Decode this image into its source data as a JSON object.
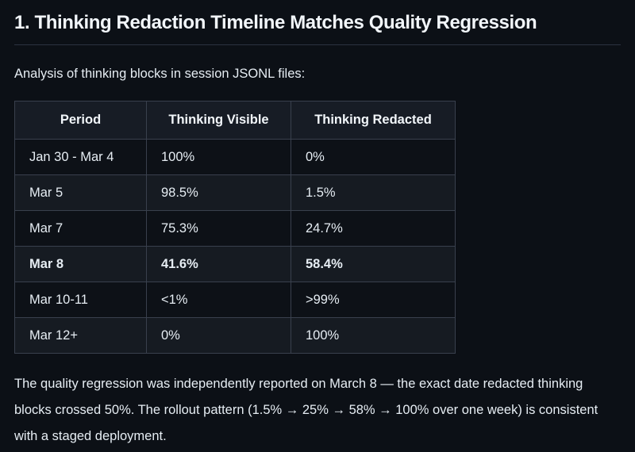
{
  "colors": {
    "page_background": "#0c1016",
    "row_dark": "#0d1117",
    "row_light": "#161b22",
    "header_background": "#171c25",
    "table_border": "#39404d",
    "body_text": "#e6edf3",
    "heading_text": "#f2f6fa"
  },
  "heading": {
    "text": "1. Thinking Redaction Timeline Matches Quality Regression"
  },
  "intro": {
    "text": "Analysis of thinking blocks in session JSONL files:"
  },
  "table": {
    "columns": [
      "Period",
      "Thinking Visible",
      "Thinking Redacted"
    ],
    "rows": [
      {
        "period": "Jan 30 - Mar 4",
        "visible": "100%",
        "redacted": "0%",
        "bold": false
      },
      {
        "period": "Mar 5",
        "visible": "98.5%",
        "redacted": "1.5%",
        "bold": false
      },
      {
        "period": "Mar 7",
        "visible": "75.3%",
        "redacted": "24.7%",
        "bold": false
      },
      {
        "period": "Mar 8",
        "visible": "41.6%",
        "redacted": "58.4%",
        "bold": true
      },
      {
        "period": "Mar 10-11",
        "visible": "<1%",
        "redacted": ">99%",
        "bold": false
      },
      {
        "period": "Mar 12+",
        "visible": "0%",
        "redacted": "100%",
        "bold": false
      }
    ]
  },
  "footer": {
    "text": "The quality regression was independently reported on March 8 — the exact date redacted thinking blocks crossed 50%. The rollout pattern (1.5% → 25% → 58% → 100% over one week) is consistent with a staged deployment."
  }
}
